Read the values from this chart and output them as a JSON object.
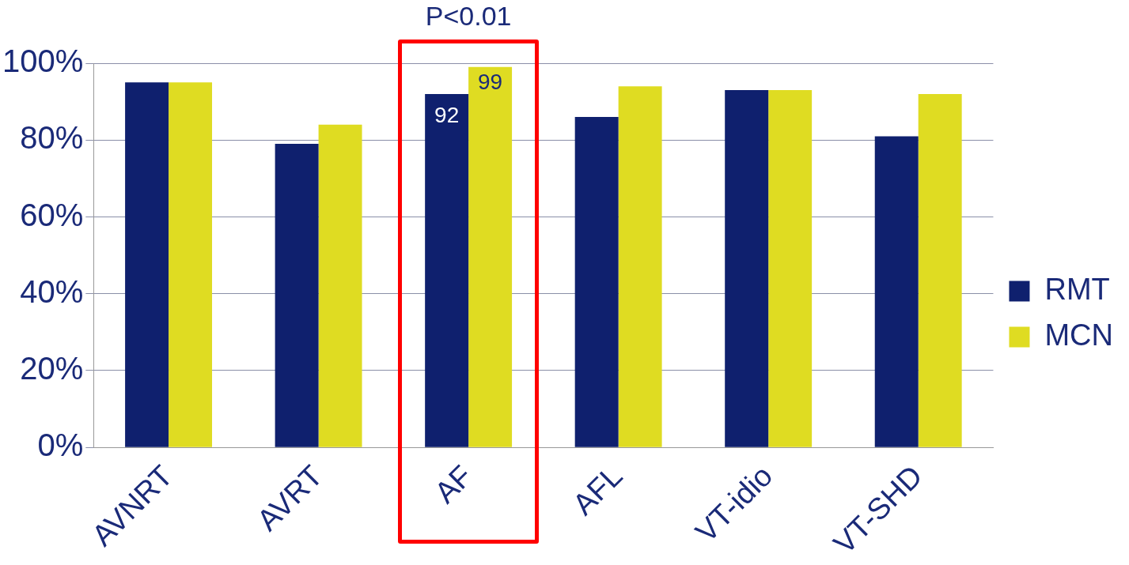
{
  "chart_data": {
    "type": "bar",
    "categories": [
      "AVNRT",
      "AVRT",
      "AF",
      "AFL",
      "VT-idio",
      "VT-SHD"
    ],
    "series": [
      {
        "name": "RMT",
        "color": "#0f206e",
        "values": [
          95,
          79,
          92,
          86,
          93,
          81
        ],
        "value_labels": [
          null,
          null,
          "92",
          null,
          null,
          null
        ]
      },
      {
        "name": "MCN",
        "color": "#dfdc22",
        "values": [
          95,
          84,
          99,
          94,
          93,
          92
        ],
        "value_labels": [
          null,
          null,
          "99",
          null,
          null,
          null
        ]
      }
    ],
    "ylim": [
      0,
      100
    ],
    "yticks": [
      {
        "value": 0,
        "label": "0%"
      },
      {
        "value": 20,
        "label": "20%"
      },
      {
        "value": 40,
        "label": "40%"
      },
      {
        "value": 60,
        "label": "60%"
      },
      {
        "value": 80,
        "label": "80%"
      },
      {
        "value": 100,
        "label": "100%"
      }
    ],
    "grid": "y",
    "legend": "right",
    "annotations": [
      "P<0.01"
    ]
  }
}
